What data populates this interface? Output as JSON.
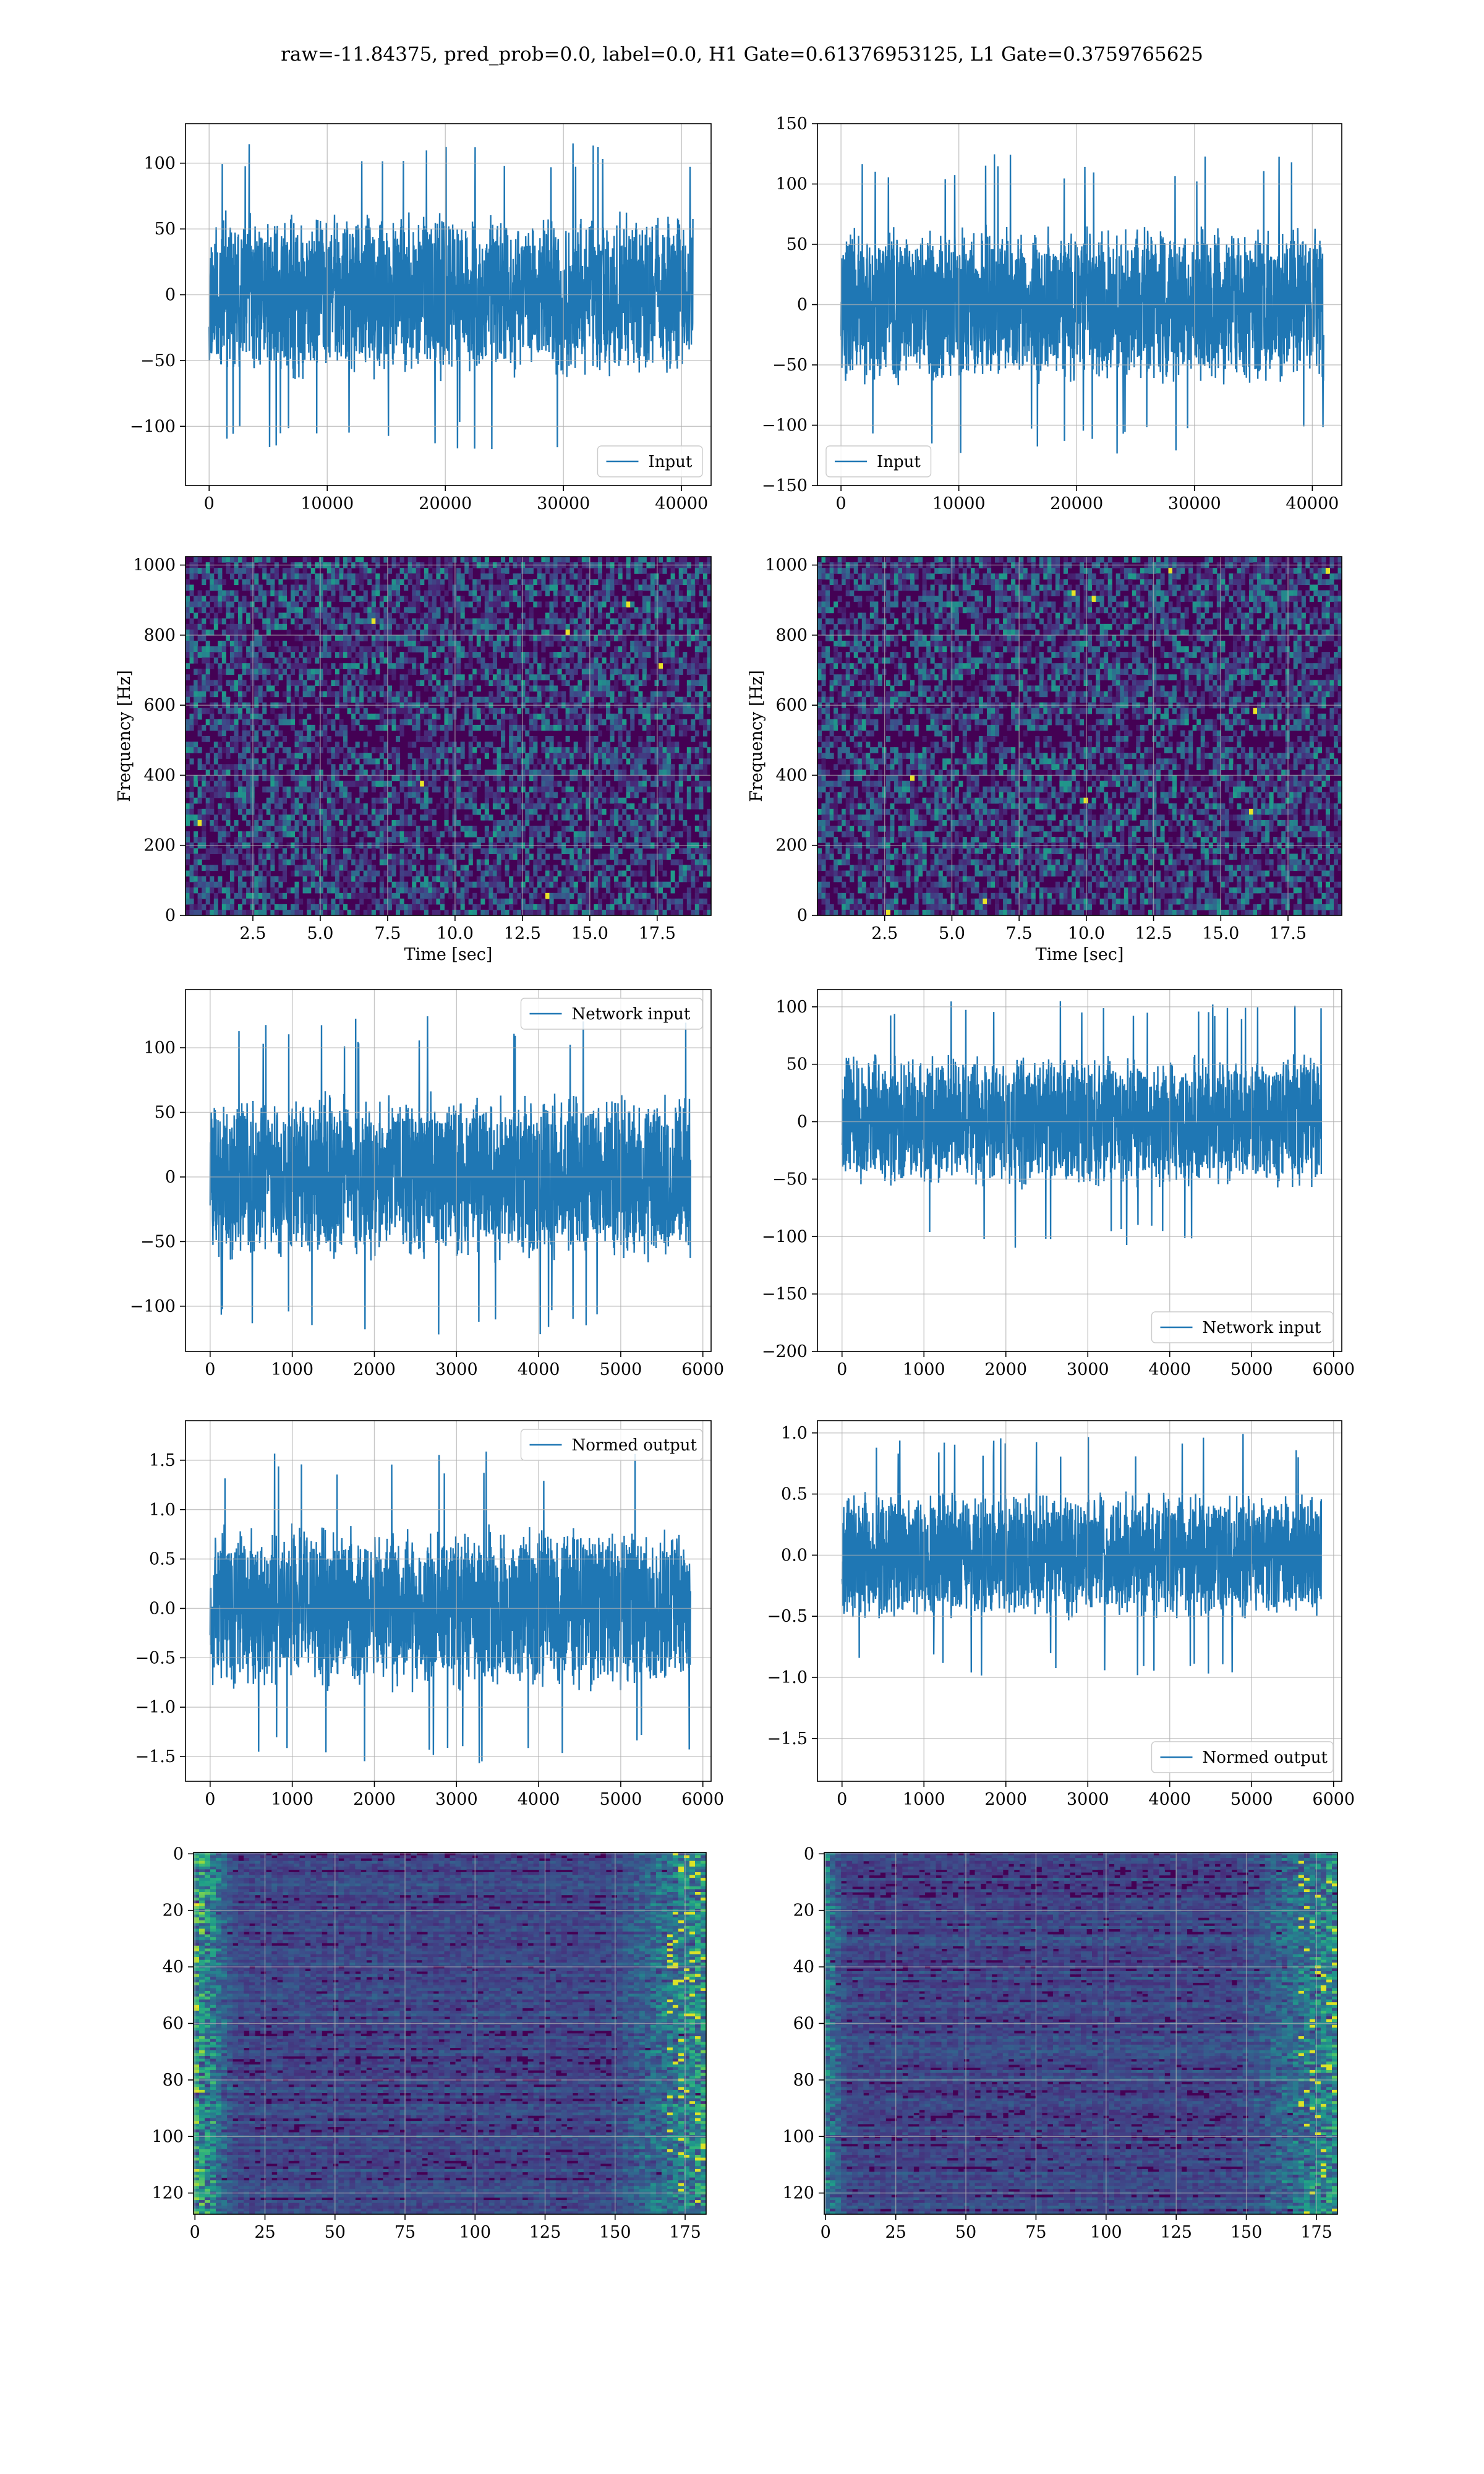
{
  "suptitle": "raw=-11.84375, pred_prob=0.0, label=0.0, H1 Gate=0.61376953125, L1 Gate=0.3759765625",
  "colors": {
    "line": "#1f77b4",
    "grid": "#b0b0b0",
    "viridis_low": "#440154",
    "viridis_high": "#fde725"
  },
  "chart_data": [
    {
      "id": "p1",
      "type": "line",
      "series": [
        {
          "name": "Input",
          "n": 40960,
          "amplitude": 120
        }
      ],
      "xlim": [
        -2000,
        42500
      ],
      "ylim": [
        -145,
        130
      ],
      "xticks": [
        0,
        10000,
        20000,
        30000,
        40000
      ],
      "yticks": [
        -100,
        -50,
        0,
        50,
        100
      ],
      "legend_loc": "lower right",
      "grid": true,
      "seed": 11,
      "xlabel": "",
      "ylabel": ""
    },
    {
      "id": "p2",
      "type": "line",
      "series": [
        {
          "name": "Input",
          "n": 40960,
          "amplitude": 125
        }
      ],
      "xlim": [
        -2000,
        42500
      ],
      "ylim": [
        -150,
        150
      ],
      "xticks": [
        0,
        10000,
        20000,
        30000,
        40000
      ],
      "yticks": [
        -150,
        -100,
        -50,
        0,
        50,
        100,
        150
      ],
      "legend_loc": "lower left",
      "grid": true,
      "seed": 23,
      "xlabel": "",
      "ylabel": ""
    },
    {
      "id": "p3",
      "type": "heatmap",
      "xlim": [
        0,
        19.5
      ],
      "ylim": [
        0,
        1024
      ],
      "xticks": [
        2.5,
        5.0,
        7.5,
        10.0,
        12.5,
        15.0,
        17.5
      ],
      "yticks": [
        0,
        200,
        400,
        600,
        800,
        1000
      ],
      "xlabel": "Time [sec]",
      "ylabel": "Frequency [Hz]",
      "grid": true,
      "pattern": "spectrogram",
      "seed": 5
    },
    {
      "id": "p4",
      "type": "heatmap",
      "xlim": [
        0,
        19.5
      ],
      "ylim": [
        0,
        1024
      ],
      "xticks": [
        2.5,
        5.0,
        7.5,
        10.0,
        12.5,
        15.0,
        17.5
      ],
      "yticks": [
        0,
        200,
        400,
        600,
        800,
        1000
      ],
      "xlabel": "Time [sec]",
      "ylabel": "Frequency [Hz]",
      "grid": true,
      "pattern": "spectrogram",
      "seed": 9
    },
    {
      "id": "p5",
      "type": "line",
      "series": [
        {
          "name": "Network input",
          "n": 5850,
          "amplitude": 125
        }
      ],
      "xlim": [
        -300,
        6100
      ],
      "ylim": [
        -135,
        145
      ],
      "xticks": [
        0,
        1000,
        2000,
        3000,
        4000,
        5000,
        6000
      ],
      "yticks": [
        -100,
        -50,
        0,
        50,
        100
      ],
      "legend_loc": "upper right",
      "grid": true,
      "seed": 31,
      "xlabel": "",
      "ylabel": ""
    },
    {
      "id": "p6",
      "type": "line",
      "series": [
        {
          "name": "Network input",
          "n": 5850,
          "amplitude": 110
        }
      ],
      "xlim": [
        -300,
        6100
      ],
      "ylim": [
        -200,
        115
      ],
      "xticks": [
        0,
        1000,
        2000,
        3000,
        4000,
        5000,
        6000
      ],
      "yticks": [
        -200,
        -150,
        -100,
        -50,
        0,
        50,
        100
      ],
      "legend_loc": "lower right",
      "grid": true,
      "seed": 43,
      "xlabel": "",
      "ylabel": ""
    },
    {
      "id": "p7",
      "type": "line",
      "series": [
        {
          "name": "Normed output",
          "n": 5850,
          "amplitude": 1.6
        }
      ],
      "xlim": [
        -300,
        6100
      ],
      "ylim": [
        -1.75,
        1.9
      ],
      "xticks": [
        0,
        1000,
        2000,
        3000,
        4000,
        5000,
        6000
      ],
      "yticks": [
        -1.5,
        -1.0,
        -0.5,
        0.0,
        0.5,
        1.0,
        1.5
      ],
      "legend_loc": "upper right",
      "grid": true,
      "seed": 53,
      "xlabel": "",
      "ylabel": ""
    },
    {
      "id": "p8",
      "type": "line",
      "series": [
        {
          "name": "Normed output",
          "n": 5850,
          "amplitude": 1.0
        }
      ],
      "xlim": [
        -300,
        6100
      ],
      "ylim": [
        -1.85,
        1.1
      ],
      "xticks": [
        0,
        1000,
        2000,
        3000,
        4000,
        5000,
        6000
      ],
      "yticks": [
        -1.5,
        -1.0,
        -0.5,
        0.0,
        0.5,
        1.0
      ],
      "legend_loc": "lower right",
      "grid": true,
      "seed": 67,
      "xlabel": "",
      "ylabel": ""
    },
    {
      "id": "p9",
      "type": "heatmap",
      "xlim": [
        -0.5,
        182.5
      ],
      "ylim": [
        127.5,
        -0.5
      ],
      "xticks": [
        0,
        25,
        50,
        75,
        100,
        125,
        150,
        175
      ],
      "yticks": [
        0,
        20,
        40,
        60,
        80,
        100,
        120
      ],
      "xlabel": "",
      "ylabel": "",
      "grid": true,
      "pattern": "features",
      "seed": 71
    },
    {
      "id": "p10",
      "type": "heatmap",
      "xlim": [
        -0.5,
        182.5
      ],
      "ylim": [
        127.5,
        -0.5
      ],
      "xticks": [
        0,
        25,
        50,
        75,
        100,
        125,
        150,
        175
      ],
      "yticks": [
        0,
        20,
        40,
        60,
        80,
        100,
        120
      ],
      "xlabel": "",
      "ylabel": "",
      "grid": true,
      "pattern": "features",
      "seed": 89
    }
  ]
}
